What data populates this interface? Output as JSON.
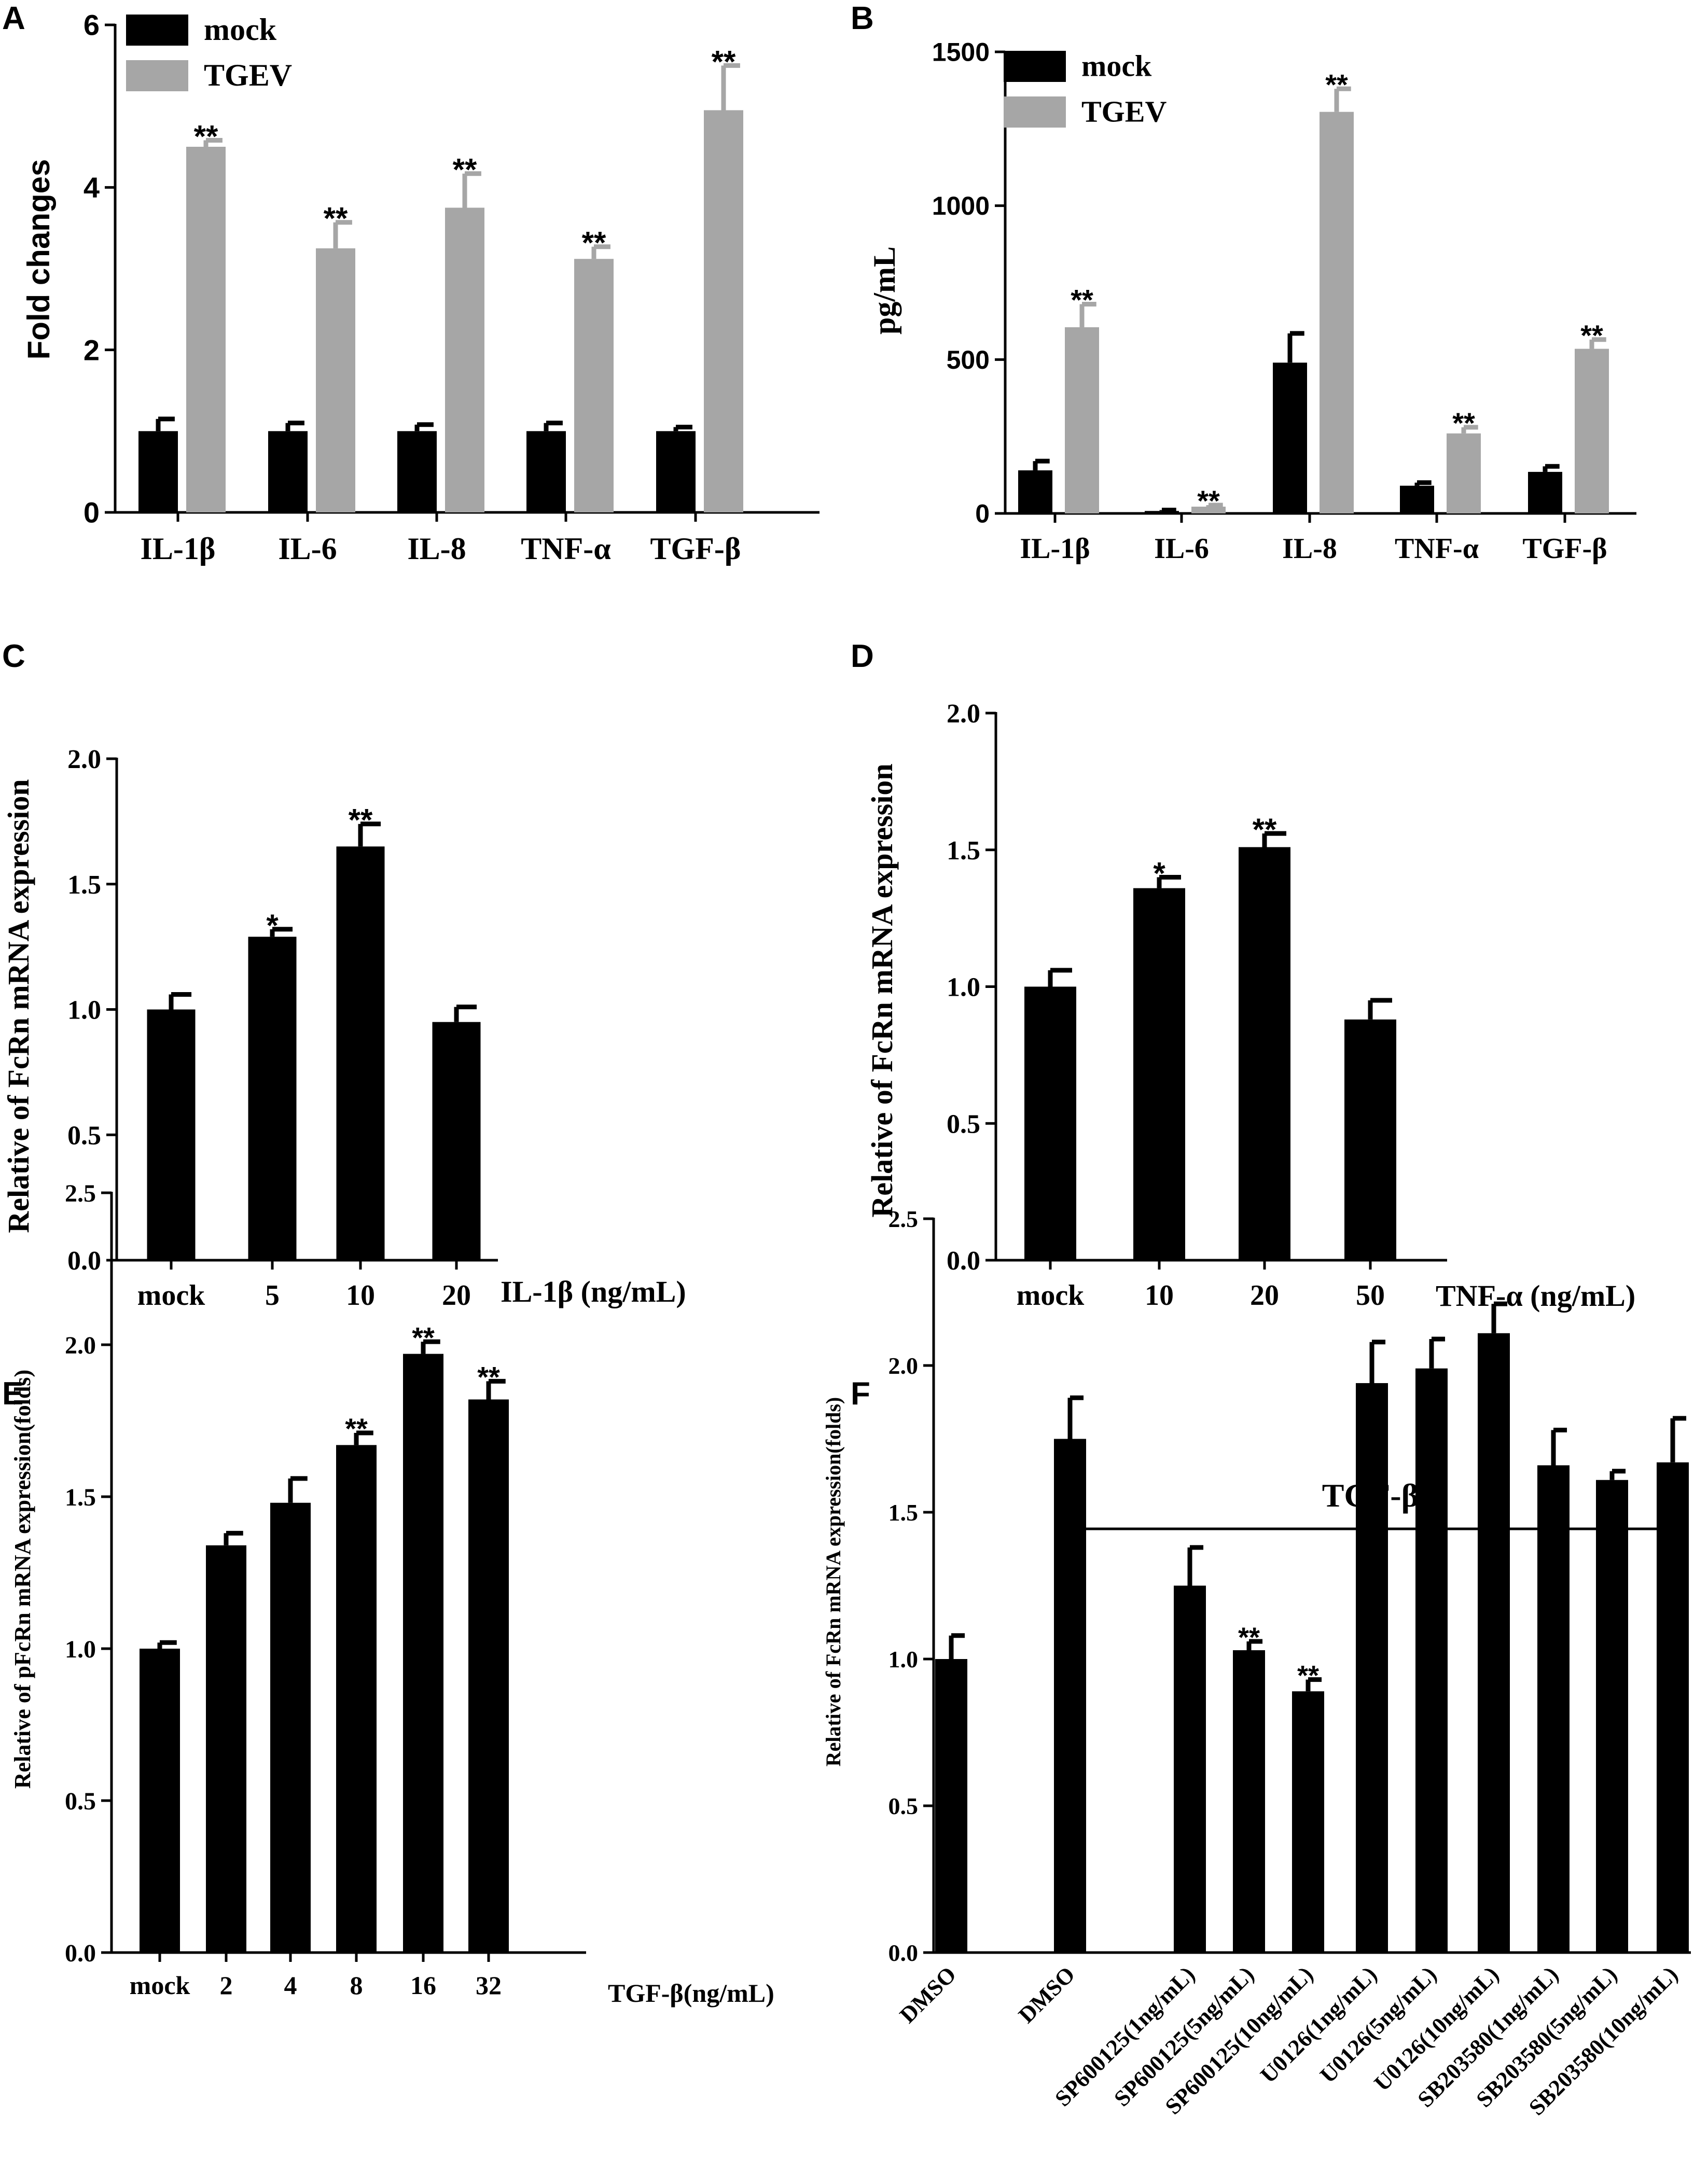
{
  "colors": {
    "mock": "#000000",
    "tgev": "#a6a6a6",
    "axis": "#000000"
  },
  "chart_data": [
    {
      "panel": "A",
      "type": "bar",
      "ylabel": "Fold changes",
      "ylim": [
        0,
        6
      ],
      "yticks": [
        "0",
        "2",
        "4",
        "6"
      ],
      "categories": [
        "IL-1β",
        "IL-6",
        "IL-8",
        "TNF-α",
        "TGF-β"
      ],
      "series": [
        {
          "name": "mock",
          "values": [
            1.0,
            1.0,
            1.0,
            1.0,
            1.0
          ],
          "errors": [
            0.15,
            0.1,
            0.08,
            0.1,
            0.05
          ],
          "sig": [
            "",
            "",
            "",
            "",
            ""
          ]
        },
        {
          "name": "TGEV",
          "values": [
            4.5,
            3.25,
            3.75,
            3.12,
            4.95
          ],
          "errors": [
            0.08,
            0.32,
            0.42,
            0.15,
            0.55
          ],
          "sig": [
            "**",
            "**",
            "**",
            "**",
            "**"
          ]
        }
      ]
    },
    {
      "panel": "B",
      "type": "bar",
      "ylabel": "pg/mL",
      "ylim": [
        0,
        1500
      ],
      "yticks": [
        "0",
        "500",
        "1000",
        "1500"
      ],
      "categories": [
        "IL-1β",
        "IL-6",
        "IL-8",
        "TNF-α",
        "TGF-β"
      ],
      "series": [
        {
          "name": "mock",
          "values": [
            140,
            8,
            490,
            90,
            135
          ],
          "errors": [
            30,
            3,
            95,
            10,
            18
          ],
          "sig": [
            "",
            "",
            "",
            "",
            ""
          ]
        },
        {
          "name": "TGEV",
          "values": [
            605,
            22,
            1305,
            260,
            535
          ],
          "errors": [
            75,
            5,
            75,
            20,
            30
          ],
          "sig": [
            "**",
            "**",
            "**",
            "**",
            "**"
          ]
        }
      ]
    },
    {
      "panel": "C",
      "type": "bar",
      "ylabel": "Relative of FcRn mRNA expression",
      "xlabel": "IL-1β (ng/mL)",
      "ylim": [
        0,
        2.0
      ],
      "yticks": [
        "0.0",
        "0.5",
        "1.0",
        "1.5",
        "2.0"
      ],
      "categories": [
        "mock",
        "5",
        "10",
        "20"
      ],
      "values": [
        1.0,
        1.29,
        1.65,
        0.95
      ],
      "errors": [
        0.06,
        0.03,
        0.09,
        0.06
      ],
      "sig": [
        "",
        "*",
        "**",
        ""
      ]
    },
    {
      "panel": "D",
      "type": "bar",
      "ylabel": "Relative of FcRn mRNA expression",
      "xlabel": "TNF-α (ng/mL)",
      "ylim": [
        0,
        2.0
      ],
      "yticks": [
        "0.0",
        "0.5",
        "1.0",
        "1.5",
        "2.0"
      ],
      "categories": [
        "mock",
        "10",
        "20",
        "50"
      ],
      "values": [
        1.0,
        1.36,
        1.51,
        0.88
      ],
      "errors": [
        0.06,
        0.04,
        0.05,
        0.07
      ],
      "sig": [
        "",
        "*",
        "**",
        ""
      ]
    },
    {
      "panel": "E",
      "type": "bar",
      "ylabel": "Relative of pFcRn mRNA expression(folds)",
      "xlabel": "TGF-β(ng/mL)",
      "ylim": [
        0,
        2.5
      ],
      "yticks": [
        "0.0",
        "0.5",
        "1.0",
        "1.5",
        "2.0",
        "2.5"
      ],
      "categories": [
        "mock",
        "2",
        "4",
        "8",
        "16",
        "32"
      ],
      "values": [
        1.0,
        1.34,
        1.48,
        1.67,
        1.97,
        1.82
      ],
      "errors": [
        0.02,
        0.04,
        0.08,
        0.04,
        0.04,
        0.06
      ],
      "sig": [
        "",
        "",
        "",
        "**",
        "**",
        "**"
      ]
    },
    {
      "panel": "F",
      "type": "bar",
      "ylabel": "Relative of FcRn mRNA expression(folds)",
      "annotation": "TGF-β",
      "ylim": [
        0,
        2.5
      ],
      "yticks": [
        "0.0",
        "0.5",
        "1.0",
        "1.5",
        "2.0",
        "2.5"
      ],
      "categories": [
        "DMSO",
        "DMSO",
        "SP600125(1ng/mL)",
        "SP600125(5ng/mL)",
        "SP600125(10ng/mL)",
        "U0126(1ng/mL)",
        "U0126(5ng/mL)",
        "U0126(10ng/mL)",
        "SB203580(1ng/mL)",
        "SB203580(5ng/mL)",
        "SB203580(10ng/mL)"
      ],
      "values": [
        1.0,
        1.75,
        1.25,
        1.03,
        0.89,
        1.94,
        1.99,
        2.11,
        1.66,
        1.61,
        1.67
      ],
      "errors": [
        0.08,
        0.14,
        0.13,
        0.03,
        0.04,
        0.14,
        0.1,
        0.1,
        0.12,
        0.03,
        0.15
      ],
      "sig": [
        "",
        "",
        "",
        "**",
        "**",
        "",
        "",
        "",
        "",
        "",
        ""
      ]
    }
  ]
}
